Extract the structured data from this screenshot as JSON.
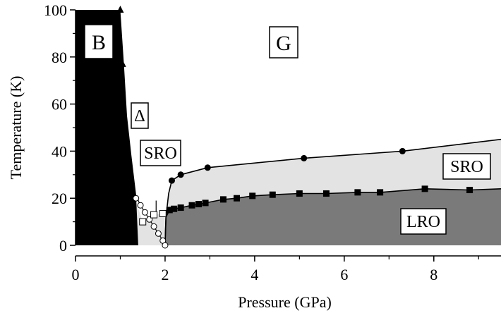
{
  "chart_data": {
    "type": "scatter",
    "title": "",
    "xlabel": "Pressure (GPa)",
    "ylabel": "Temperature (K)",
    "xlim": [
      0,
      9.5
    ],
    "ylim": [
      0,
      100
    ],
    "x_ticks": [
      "0",
      "2",
      "4",
      "6",
      "8"
    ],
    "y_ticks": [
      "0",
      "20",
      "40",
      "60",
      "80",
      "100"
    ],
    "region_labels": {
      "B": "B",
      "G": "G",
      "delta": "Δ",
      "sro_left": "SRO",
      "sro_right": "SRO",
      "lro": "LRO"
    },
    "series": [
      {
        "marker": "circle-filled",
        "x": [
          2.15,
          2.35,
          2.95,
          5.1,
          7.3
        ],
        "y": [
          27.5,
          30,
          33,
          37,
          40
        ]
      },
      {
        "marker": "square-filled",
        "x": [
          2.1,
          2.2,
          2.35,
          2.6,
          2.75,
          2.9,
          3.3,
          3.6,
          3.95,
          4.4,
          5.0,
          5.6,
          6.3,
          6.8,
          7.8,
          8.8
        ],
        "y": [
          15,
          15.5,
          16,
          17,
          17.5,
          18,
          19.5,
          20,
          21,
          21.5,
          22,
          22,
          22.5,
          22.5,
          24,
          23.5
        ]
      },
      {
        "marker": "circle-open",
        "x": [
          1.35,
          1.45,
          1.55,
          1.65,
          1.75,
          1.85,
          1.95,
          2.0
        ],
        "y": [
          20,
          17,
          14,
          11,
          8,
          5,
          2,
          0
        ]
      },
      {
        "marker": "square-open",
        "x": [
          1.5,
          1.75,
          1.95
        ],
        "y": [
          10,
          13,
          13.5
        ]
      },
      {
        "marker": "triangle-filled",
        "x": [
          1.0,
          1.05,
          1.08
        ],
        "y": [
          100,
          77,
          53
        ]
      }
    ],
    "colors": {
      "B_region": "#000000",
      "SRO_region": "#e3e3e3",
      "LRO_region": "#7a7a7a",
      "phase_line": "#000000"
    }
  }
}
